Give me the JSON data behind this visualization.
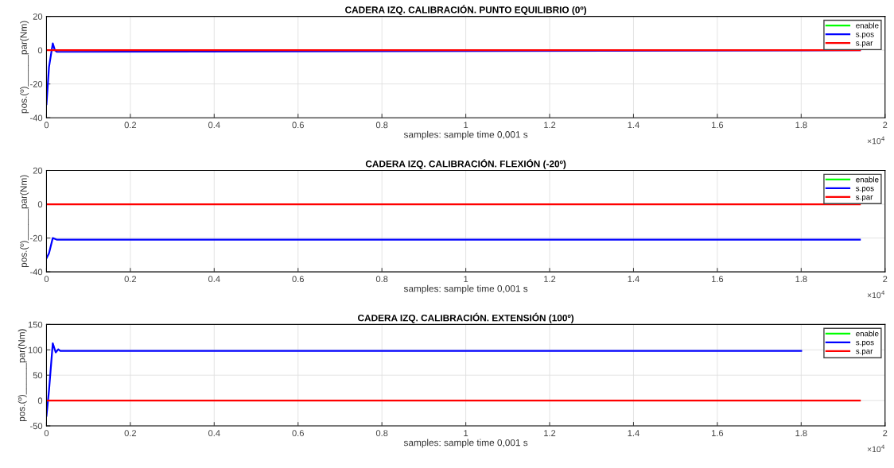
{
  "chart_data": [
    {
      "type": "line",
      "title": "CADERA IZQ. CALIBRACIÓN. PUNTO EQUILIBRIO (0º)",
      "xlabel": "samples: sample time 0,001 s",
      "ylabel": "pos.(º)______par(Nm)",
      "xlim": [
        0,
        2
      ],
      "xticks": [
        0,
        0.2,
        0.4,
        0.6,
        0.8,
        1,
        1.2,
        1.4,
        1.6,
        1.8,
        2
      ],
      "ylim": [
        -40,
        20
      ],
      "yticks": [
        -40,
        -20,
        0,
        20
      ],
      "grid": true,
      "legend": "top right",
      "annotations": [
        "×10$^{4}$"
      ],
      "series": [
        {
          "name": "enable",
          "color": "#00ff00"
        },
        {
          "name": "s.pos",
          "color": "#0000ff",
          "x": [
            0,
            0.006,
            0.015,
            0.02,
            0.025,
            1.94
          ],
          "values": [
            -32,
            -10,
            4,
            0,
            -1,
            0
          ]
        },
        {
          "name": "s.par",
          "color": "#ff0000",
          "x": [
            0,
            1.94
          ],
          "values": [
            0,
            0
          ]
        }
      ]
    },
    {
      "type": "line",
      "title": "CADERA IZQ. CALIBRACIÓN. FLEXIÓN (-20º)",
      "xlabel": "samples: sample time 0,001 s",
      "ylabel": "pos.(º)______par(Nm)",
      "xlim": [
        0,
        2
      ],
      "xticks": [
        0,
        0.2,
        0.4,
        0.6,
        0.8,
        1,
        1.2,
        1.4,
        1.6,
        1.8,
        2
      ],
      "ylim": [
        -40,
        20
      ],
      "yticks": [
        -40,
        -20,
        0,
        20
      ],
      "grid": true,
      "legend": "top right",
      "annotations": [
        "×10$^{4}$"
      ],
      "series": [
        {
          "name": "enable",
          "color": "#00ff00"
        },
        {
          "name": "s.pos",
          "color": "#0000ff",
          "x": [
            0,
            0.006,
            0.015,
            0.025,
            1.94
          ],
          "values": [
            -32,
            -29,
            -20,
            -21,
            -21
          ]
        },
        {
          "name": "s.par",
          "color": "#ff0000",
          "x": [
            0,
            1.94
          ],
          "values": [
            0,
            0
          ]
        }
      ]
    },
    {
      "type": "line",
      "title": "CADERA IZQ. CALIBRACIÓN. EXTENSIÓN (100º)",
      "xlabel": "samples: sample time 0,001 s",
      "ylabel": "pos.(º)______par(Nm)",
      "xlim": [
        0,
        2
      ],
      "xticks": [
        0,
        0.2,
        0.4,
        0.6,
        0.8,
        1,
        1.2,
        1.4,
        1.6,
        1.8,
        2
      ],
      "ylim": [
        -50,
        150
      ],
      "yticks": [
        -50,
        0,
        50,
        100,
        150
      ],
      "grid": true,
      "legend": "top right",
      "annotations": [
        "×10$^{4}$"
      ],
      "series": [
        {
          "name": "enable",
          "color": "#00ff00"
        },
        {
          "name": "s.pos",
          "color": "#0000ff",
          "x": [
            0,
            0.006,
            0.015,
            0.022,
            0.028,
            0.033,
            1.8
          ],
          "values": [
            -30,
            20,
            113,
            95,
            101,
            98,
            98
          ]
        },
        {
          "name": "s.par",
          "color": "#ff0000",
          "x": [
            0,
            1.94
          ],
          "values": [
            0,
            0
          ]
        }
      ]
    }
  ]
}
